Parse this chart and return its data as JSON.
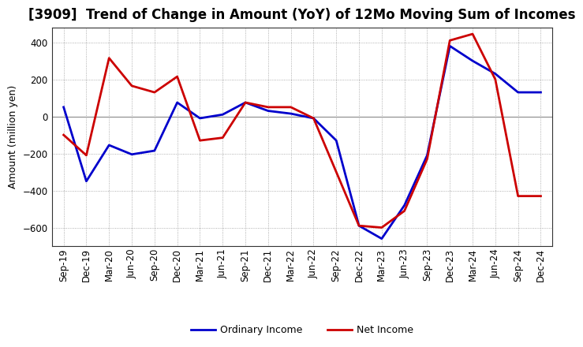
{
  "title": "[3909]  Trend of Change in Amount (YoY) of 12Mo Moving Sum of Incomes",
  "ylabel": "Amount (million yen)",
  "x_labels": [
    "Sep-19",
    "Dec-19",
    "Mar-20",
    "Jun-20",
    "Sep-20",
    "Dec-20",
    "Mar-21",
    "Jun-21",
    "Sep-21",
    "Dec-21",
    "Mar-22",
    "Jun-22",
    "Sep-22",
    "Dec-22",
    "Mar-23",
    "Jun-23",
    "Sep-23",
    "Dec-23",
    "Mar-24",
    "Jun-24",
    "Sep-24",
    "Dec-24"
  ],
  "ordinary_income": [
    50,
    -350,
    -155,
    -205,
    -185,
    75,
    -10,
    10,
    75,
    30,
    15,
    -10,
    -130,
    -590,
    -660,
    -480,
    -210,
    380,
    300,
    230,
    130,
    130
  ],
  "net_income": [
    -100,
    -210,
    315,
    165,
    130,
    215,
    -130,
    -115,
    75,
    50,
    50,
    -10,
    -300,
    -590,
    -600,
    -510,
    -230,
    410,
    445,
    200,
    -430,
    -430
  ],
  "ordinary_income_color": "#0000cc",
  "net_income_color": "#cc0000",
  "ylim": [
    -700,
    480
  ],
  "yticks": [
    -600,
    -400,
    -200,
    0,
    200,
    400
  ],
  "background_color": "#ffffff",
  "grid_color": "#999999",
  "legend_ordinary": "Ordinary Income",
  "legend_net": "Net Income",
  "line_width": 2.0,
  "title_fontsize": 12,
  "axis_fontsize": 9,
  "tick_fontsize": 8.5
}
